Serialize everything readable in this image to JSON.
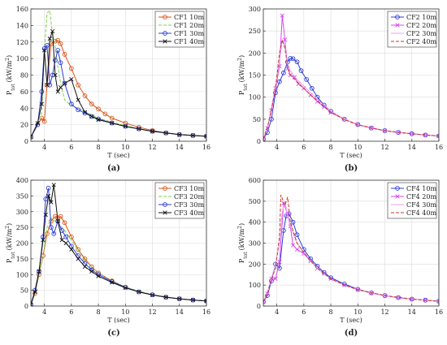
{
  "chart_data": [
    {
      "type": "line",
      "ylabel": "P_tot (kW/m²)",
      "ylabel_main": "P",
      "ylabel_sub": "tot",
      "ylabel_unit": "(kW/m",
      "ylabel_sup": "2",
      "ylabel_close": ")",
      "xlabel": "T (sec)",
      "panel_label": "(a)",
      "xlim": [
        3,
        16
      ],
      "ylim": [
        0,
        160
      ],
      "xticks": [
        4,
        6,
        8,
        10,
        12,
        14,
        16
      ],
      "yticks": [
        0,
        20,
        40,
        60,
        80,
        100,
        120,
        140,
        160
      ],
      "grid": true,
      "legend_position": "top-right",
      "series": [
        {
          "name": "CF1 10m",
          "color": "#d9541a",
          "marker": "circle",
          "dash": "solid",
          "x": [
            3.0,
            3.5,
            3.8,
            4.0,
            4.2,
            4.5,
            4.8,
            5.0,
            5.2,
            5.5,
            6.0,
            6.5,
            7.0,
            7.5,
            8.0,
            8.5,
            9.0,
            10.0,
            11.0,
            12.0,
            13.0,
            14.0,
            15.0,
            16.0
          ],
          "y": [
            5,
            20,
            28,
            24,
            68,
            118,
            121,
            122,
            118,
            105,
            88,
            68,
            55,
            45,
            39,
            33,
            28,
            22,
            17,
            13,
            10,
            8,
            7,
            6
          ]
        },
        {
          "name": "CF1 20m",
          "color": "#7fd14a",
          "marker": "none",
          "dash": "dashed",
          "x": [
            3.0,
            3.5,
            3.8,
            4.0,
            4.2,
            4.4,
            4.6,
            4.8,
            5.0,
            5.2,
            5.5,
            6.0,
            6.5,
            7.0,
            7.5,
            8.0,
            9.0,
            10.0,
            11.0,
            12.0,
            13.0,
            14.0,
            15.0,
            16.0
          ],
          "y": [
            5,
            20,
            35,
            110,
            155,
            158,
            130,
            115,
            90,
            70,
            50,
            43,
            40,
            36,
            32,
            28,
            23,
            19,
            15,
            12,
            10,
            8,
            7,
            6
          ]
        },
        {
          "name": "CF1 30m",
          "color": "#2d3ddb",
          "marker": "circle",
          "dash": "solid",
          "x": [
            3.0,
            3.5,
            3.8,
            4.0,
            4.2,
            4.4,
            4.6,
            4.8,
            5.0,
            5.2,
            5.5,
            6.0,
            6.5,
            7.0,
            7.5,
            8.0,
            9.0,
            10.0,
            11.0,
            12.0,
            13.0,
            14.0,
            15.0,
            16.0
          ],
          "y": [
            5,
            20,
            60,
            112,
            116,
            68,
            80,
            98,
            110,
            95,
            70,
            45,
            38,
            34,
            30,
            27,
            22,
            18,
            15,
            12,
            10,
            8,
            7,
            6
          ]
        },
        {
          "name": "CF1 40m",
          "color": "#111111",
          "marker": "x",
          "dash": "solid",
          "x": [
            3.0,
            3.5,
            3.8,
            4.0,
            4.2,
            4.4,
            4.6,
            4.8,
            5.0,
            5.2,
            5.5,
            6.0,
            6.5,
            7.0,
            7.5,
            8.0,
            9.0,
            10.0,
            11.0,
            12.0,
            13.0,
            14.0,
            15.0,
            16.0
          ],
          "y": [
            5,
            22,
            45,
            110,
            68,
            124,
            133,
            80,
            60,
            65,
            70,
            75,
            50,
            35,
            30,
            26,
            22,
            18,
            15,
            12,
            10,
            8,
            7,
            6
          ]
        }
      ]
    },
    {
      "type": "line",
      "ylabel": "P_tot (kW/m²)",
      "ylabel_main": "P",
      "ylabel_sub": "tot",
      "ylabel_unit": "(kW/m",
      "ylabel_sup": "2",
      "ylabel_close": ")",
      "xlabel": "T (sec)",
      "panel_label": "(b)",
      "xlim": [
        3,
        16
      ],
      "ylim": [
        0,
        300
      ],
      "xticks": [
        4,
        6,
        8,
        10,
        12,
        14,
        16
      ],
      "yticks": [
        0,
        50,
        100,
        150,
        200,
        250,
        300
      ],
      "grid": true,
      "legend_position": "top-right",
      "series": [
        {
          "name": "CF2 10m",
          "color": "#2d3ddb",
          "marker": "circle",
          "dash": "solid",
          "x": [
            3.0,
            3.3,
            3.6,
            3.9,
            4.2,
            4.5,
            4.8,
            5.0,
            5.2,
            5.5,
            5.8,
            6.2,
            6.6,
            7.0,
            7.5,
            8.0,
            9.0,
            10.0,
            11.0,
            12.0,
            13.0,
            14.0,
            15.0,
            16.0
          ],
          "y": [
            5,
            20,
            50,
            110,
            135,
            155,
            180,
            188,
            187,
            180,
            160,
            140,
            120,
            100,
            82,
            68,
            50,
            38,
            30,
            24,
            20,
            17,
            14,
            12
          ]
        },
        {
          "name": "CF2 20m",
          "color": "#d946ef",
          "marker": "x",
          "dash": "solid",
          "x": [
            3.0,
            3.3,
            3.6,
            3.9,
            4.2,
            4.4,
            4.6,
            4.8,
            5.0,
            5.3,
            5.6,
            6.0,
            6.5,
            7.0,
            7.5,
            8.0,
            9.0,
            10.0,
            11.0,
            12.0,
            13.0,
            14.0,
            15.0,
            16.0
          ],
          "y": [
            5,
            30,
            70,
            120,
            170,
            285,
            230,
            165,
            150,
            145,
            130,
            120,
            105,
            90,
            78,
            65,
            50,
            38,
            30,
            24,
            20,
            17,
            14,
            12
          ]
        },
        {
          "name": "CF2 30m",
          "color": "#eaa0ea",
          "marker": "none",
          "dash": "solid",
          "x": [
            3.0,
            3.3,
            3.6,
            3.9,
            4.2,
            4.4,
            4.6,
            4.8,
            5.0,
            5.5,
            6.0,
            6.5,
            7.0,
            8.0,
            9.0,
            10.0,
            12.0,
            14.0,
            16.0
          ],
          "y": [
            5,
            30,
            75,
            125,
            180,
            230,
            215,
            175,
            160,
            140,
            125,
            110,
            95,
            68,
            50,
            38,
            24,
            17,
            12
          ]
        },
        {
          "name": "CF2 40m",
          "color": "#c0392b",
          "marker": "none",
          "dash": "dashed",
          "x": [
            3.0,
            3.3,
            3.6,
            3.9,
            4.2,
            4.4,
            4.6,
            4.8,
            5.0,
            5.5,
            6.0,
            6.5,
            7.0,
            8.0,
            9.0,
            10.0,
            12.0,
            14.0,
            16.0
          ],
          "y": [
            5,
            30,
            72,
            120,
            200,
            230,
            210,
            170,
            150,
            135,
            120,
            105,
            92,
            66,
            49,
            37,
            24,
            17,
            12
          ]
        }
      ]
    },
    {
      "type": "line",
      "ylabel": "P_tot (kW/m²)",
      "ylabel_main": "P",
      "ylabel_sub": "tot",
      "ylabel_unit": "(kW/m",
      "ylabel_sup": "2",
      "ylabel_close": ")",
      "xlabel": "T (sec)",
      "panel_label": "(c)",
      "xlim": [
        3,
        16
      ],
      "ylim": [
        0,
        400
      ],
      "xticks": [
        4,
        6,
        8,
        10,
        12,
        14,
        16
      ],
      "yticks": [
        0,
        50,
        100,
        150,
        200,
        250,
        300,
        350,
        400
      ],
      "grid": true,
      "legend_position": "top-right",
      "series": [
        {
          "name": "CF3 10m",
          "color": "#d9541a",
          "marker": "circle",
          "dash": "solid",
          "x": [
            3.0,
            3.3,
            3.6,
            3.9,
            4.2,
            4.5,
            4.8,
            5.0,
            5.2,
            5.5,
            6.0,
            6.5,
            7.0,
            7.5,
            8.0,
            9.0,
            10.0,
            11.0,
            12.0,
            13.0,
            14.0,
            15.0,
            16.0
          ],
          "y": [
            5,
            40,
            100,
            160,
            230,
            270,
            285,
            280,
            285,
            265,
            220,
            180,
            150,
            125,
            105,
            80,
            60,
            45,
            36,
            28,
            23,
            19,
            16
          ]
        },
        {
          "name": "CF3 20m",
          "color": "#7fd14a",
          "marker": "none",
          "dash": "dashed",
          "x": [
            3.0,
            3.3,
            3.6,
            3.9,
            4.2,
            4.5,
            4.8,
            5.0,
            5.5,
            6.0,
            7.0,
            8.0,
            9.0,
            10.0,
            12.0,
            14.0,
            16.0
          ],
          "y": [
            5,
            40,
            100,
            160,
            250,
            280,
            270,
            265,
            240,
            210,
            145,
            105,
            80,
            60,
            36,
            23,
            16
          ]
        },
        {
          "name": "CF3 30m",
          "color": "#2d3ddb",
          "marker": "circle",
          "dash": "solid",
          "x": [
            3.0,
            3.3,
            3.6,
            3.9,
            4.1,
            4.3,
            4.5,
            4.7,
            5.0,
            5.3,
            5.6,
            6.0,
            6.5,
            7.0,
            7.5,
            8.0,
            9.0,
            10.0,
            11.0,
            12.0,
            13.0,
            14.0,
            15.0,
            16.0
          ],
          "y": [
            5,
            50,
            110,
            220,
            340,
            375,
            250,
            230,
            270,
            240,
            220,
            190,
            160,
            135,
            115,
            100,
            78,
            60,
            45,
            36,
            28,
            23,
            19,
            16
          ]
        },
        {
          "name": "CF3 40m",
          "color": "#111111",
          "marker": "x",
          "dash": "solid",
          "x": [
            3.0,
            3.3,
            3.6,
            3.9,
            4.1,
            4.3,
            4.5,
            4.7,
            5.0,
            5.3,
            5.6,
            6.0,
            6.5,
            7.0,
            7.5,
            8.0,
            9.0,
            10.0,
            11.0,
            12.0,
            13.0,
            14.0,
            15.0,
            16.0
          ],
          "y": [
            5,
            45,
            110,
            210,
            290,
            350,
            330,
            385,
            270,
            210,
            200,
            180,
            150,
            125,
            110,
            95,
            75,
            58,
            45,
            35,
            28,
            23,
            19,
            16
          ]
        }
      ]
    },
    {
      "type": "line",
      "ylabel": "P_tot (kW/m²)",
      "ylabel_main": "P",
      "ylabel_sub": "tot",
      "ylabel_unit": "(kW/m",
      "ylabel_sup": "2",
      "ylabel_close": ")",
      "xlabel": "T (sec)",
      "panel_label": "(d)",
      "xlim": [
        3,
        16
      ],
      "ylim": [
        0,
        600
      ],
      "xticks": [
        4,
        6,
        8,
        10,
        12,
        14,
        16
      ],
      "yticks": [
        0,
        100,
        200,
        300,
        400,
        500,
        600
      ],
      "grid": true,
      "legend_position": "top-right",
      "series": [
        {
          "name": "CF4 10m",
          "color": "#2d3ddb",
          "marker": "circle",
          "dash": "solid",
          "x": [
            3.0,
            3.3,
            3.6,
            3.9,
            4.2,
            4.5,
            4.7,
            4.9,
            5.2,
            5.5,
            6.0,
            6.5,
            7.0,
            7.5,
            8.0,
            9.0,
            10.0,
            11.0,
            12.0,
            13.0,
            14.0,
            15.0,
            16.0
          ],
          "y": [
            20,
            50,
            120,
            200,
            180,
            360,
            430,
            440,
            400,
            340,
            270,
            225,
            190,
            160,
            135,
            105,
            80,
            63,
            50,
            40,
            33,
            28,
            23
          ]
        },
        {
          "name": "CF4 20m",
          "color": "#d946ef",
          "marker": "x",
          "dash": "solid",
          "x": [
            3.0,
            3.3,
            3.6,
            3.9,
            4.2,
            4.5,
            4.8,
            5.0,
            5.2,
            5.5,
            6.0,
            6.5,
            7.0,
            7.5,
            8.0,
            9.0,
            10.0,
            11.0,
            12.0,
            13.0,
            14.0,
            15.0,
            16.0
          ],
          "y": [
            20,
            60,
            130,
            130,
            210,
            490,
            440,
            380,
            290,
            270,
            250,
            215,
            180,
            155,
            130,
            100,
            78,
            62,
            50,
            40,
            33,
            28,
            23
          ]
        },
        {
          "name": "CF4 30m",
          "color": "#eaa0ea",
          "marker": "none",
          "dash": "solid",
          "x": [
            3.0,
            3.3,
            3.6,
            3.9,
            4.2,
            4.4,
            4.6,
            4.8,
            5.0,
            5.5,
            6.0,
            7.0,
            8.0,
            9.0,
            10.0,
            12.0,
            14.0,
            16.0
          ],
          "y": [
            20,
            60,
            130,
            200,
            300,
            450,
            500,
            430,
            380,
            300,
            255,
            180,
            130,
            100,
            78,
            50,
            33,
            23
          ]
        },
        {
          "name": "CF4 40m",
          "color": "#c0392b",
          "marker": "none",
          "dash": "dashed",
          "x": [
            3.0,
            3.3,
            3.6,
            3.9,
            4.2,
            4.3,
            4.6,
            4.8,
            5.0,
            5.5,
            6.0,
            7.0,
            8.0,
            9.0,
            10.0,
            12.0,
            14.0,
            16.0
          ],
          "y": [
            20,
            60,
            130,
            180,
            330,
            530,
            480,
            520,
            400,
            300,
            255,
            180,
            130,
            100,
            78,
            50,
            33,
            23
          ]
        }
      ]
    }
  ]
}
